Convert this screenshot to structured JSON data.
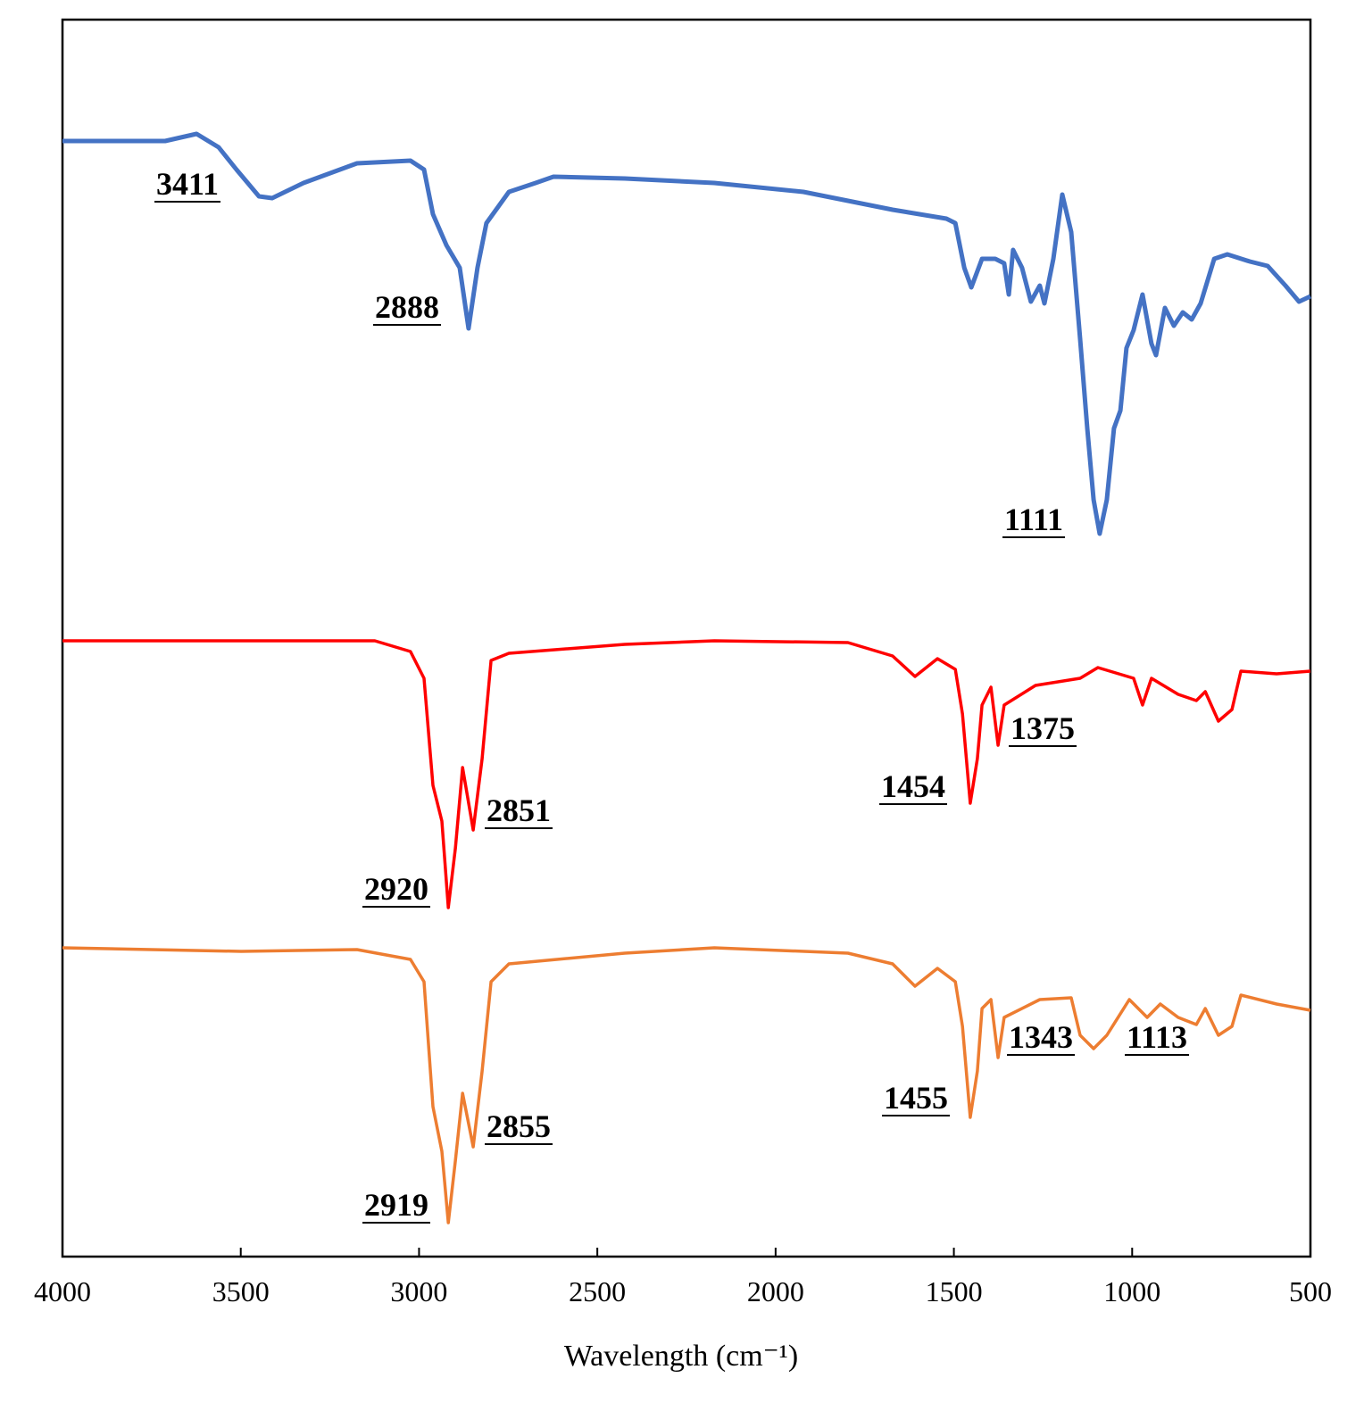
{
  "chart_data": {
    "type": "line",
    "x_label": "Wavelength (cm⁻¹)",
    "xlim": [
      4000,
      500
    ],
    "xticks": [
      4000,
      3500,
      3000,
      2500,
      2000,
      1500,
      1000,
      500
    ],
    "ylim": [
      0,
      1386
    ],
    "series": [
      {
        "color": "#4472c4",
        "x": [
          4000,
          3712,
          3624,
          3562,
          3512,
          3449,
          3412,
          3324,
          3174,
          3024,
          2986,
          2961,
          2923,
          2886,
          2861,
          2836,
          2811,
          2748,
          2673,
          2623,
          2423,
          2172,
          1922,
          1672,
          1521,
          1496,
          1471,
          1451,
          1421,
          1384,
          1359,
          1346,
          1334,
          1309,
          1284,
          1259,
          1246,
          1221,
          1196,
          1171,
          1146,
          1126,
          1108,
          1091,
          1071,
          1051,
          1033,
          1016,
          996,
          971,
          946,
          933,
          908,
          883,
          858,
          833,
          808,
          770,
          733,
          670,
          620,
          570,
          532,
          500
        ],
        "values": [
          1250,
          1250,
          1258,
          1243,
          1218,
          1188,
          1186,
          1203,
          1225,
          1228,
          1218,
          1168,
          1133,
          1108,
          1040,
          1108,
          1158,
          1193,
          1203,
          1210,
          1208,
          1203,
          1193,
          1173,
          1163,
          1158,
          1108,
          1086,
          1118,
          1118,
          1113,
          1078,
          1128,
          1108,
          1070,
          1088,
          1068,
          1118,
          1190,
          1148,
          1028,
          928,
          848,
          810,
          848,
          928,
          948,
          1018,
          1038,
          1078,
          1023,
          1010,
          1063,
          1043,
          1058,
          1050,
          1068,
          1118,
          1123,
          1115,
          1110,
          1088,
          1070,
          1076
        ]
      },
      {
        "color": "#ff0000",
        "x": [
          4000,
          3124,
          3024,
          2986,
          2961,
          2936,
          2918,
          2898,
          2878,
          2848,
          2823,
          2798,
          2748,
          2423,
          2172,
          1797,
          1672,
          1609,
          1546,
          1496,
          1476,
          1454,
          1434,
          1421,
          1396,
          1376,
          1359,
          1271,
          1146,
          1096,
          996,
          971,
          946,
          871,
          820,
          795,
          758,
          720,
          695,
          595,
          500
        ],
        "values": [
          690,
          690,
          678,
          648,
          528,
          488,
          391,
          458,
          548,
          478,
          558,
          668,
          676,
          686,
          690,
          688,
          673,
          650,
          670,
          658,
          608,
          508,
          558,
          618,
          638,
          573,
          618,
          640,
          648,
          660,
          648,
          618,
          648,
          630,
          623,
          633,
          600,
          613,
          656,
          653,
          656
        ]
      },
      {
        "color": "#ed7d31",
        "x": [
          4000,
          3499,
          3174,
          3024,
          2986,
          2961,
          2936,
          2918,
          2898,
          2878,
          2848,
          2823,
          2798,
          2748,
          2423,
          2172,
          1797,
          1672,
          1609,
          1546,
          1496,
          1476,
          1454,
          1434,
          1421,
          1396,
          1376,
          1359,
          1259,
          1171,
          1146,
          1108,
          1071,
          1008,
          958,
          921,
          871,
          820,
          795,
          758,
          720,
          695,
          595,
          500
        ],
        "values": [
          346,
          342,
          344,
          333,
          308,
          168,
          118,
          38,
          108,
          183,
          123,
          208,
          308,
          328,
          340,
          346,
          340,
          328,
          303,
          323,
          308,
          258,
          156,
          208,
          278,
          288,
          223,
          268,
          288,
          290,
          248,
          233,
          248,
          288,
          268,
          283,
          268,
          260,
          278,
          248,
          258,
          293,
          283,
          276
        ]
      }
    ],
    "annotations": [
      {
        "text": "3411"
      },
      {
        "text": "2888"
      },
      {
        "text": "1111"
      },
      {
        "text": "2851"
      },
      {
        "text": "2920"
      },
      {
        "text": "1454"
      },
      {
        "text": "1375"
      },
      {
        "text": "2855"
      },
      {
        "text": "2919"
      },
      {
        "text": "1455"
      },
      {
        "text": "1343"
      },
      {
        "text": "1113"
      }
    ]
  }
}
